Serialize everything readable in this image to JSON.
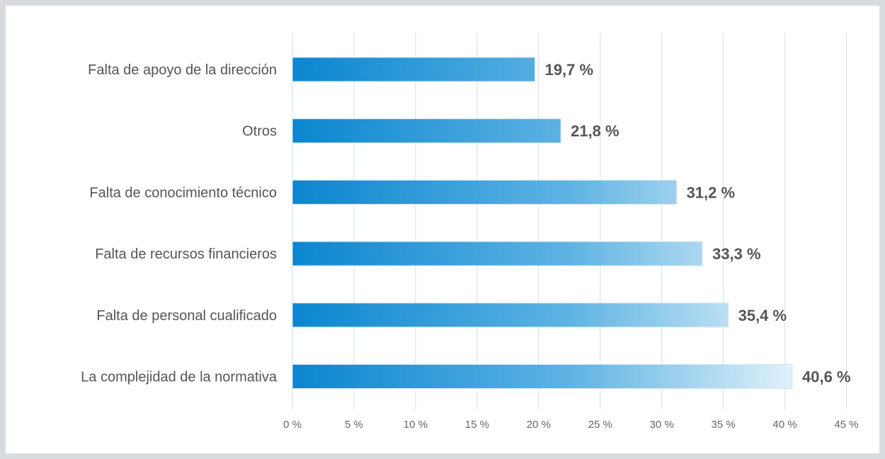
{
  "chart_data": {
    "type": "bar",
    "orientation": "horizontal",
    "title": "",
    "xlabel": "",
    "ylabel": "",
    "categories": [
      "Falta de apoyo de la dirección",
      "Otros",
      "Falta de conocimiento técnico",
      "Falta de recursos financieros",
      "Falta de personal cualificado",
      "La complejidad de la normativa"
    ],
    "values": [
      19.7,
      21.8,
      31.2,
      33.3,
      35.4,
      40.6
    ],
    "value_labels": [
      "19,7 %",
      "21,8 %",
      "31,2 %",
      "33,3 %",
      "35,4 %",
      "40,6 %"
    ],
    "xlim": [
      0,
      45
    ],
    "ticks": [
      0,
      5,
      10,
      15,
      20,
      25,
      30,
      35,
      40,
      45
    ],
    "tick_labels": [
      "0 %",
      "5 %",
      "10 %",
      "15 %",
      "20 %",
      "25 %",
      "30 %",
      "35 %",
      "40 %",
      "45 %"
    ],
    "grid": true,
    "legend": false,
    "colors": {
      "bar_start": "#0a86cf",
      "bar_end": "#ffffff",
      "gridline": "#cde0ef",
      "text": "#555555"
    }
  }
}
